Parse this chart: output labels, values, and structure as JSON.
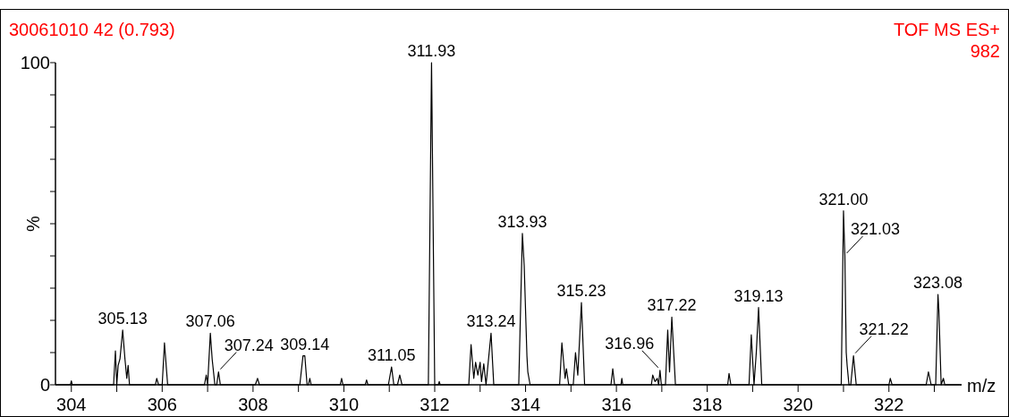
{
  "chart_data": {
    "type": "line",
    "title": "30061010 42 (0.793)",
    "xlabel": "m/z",
    "ylabel": "%",
    "annotations": [
      "TOF MS ES+",
      "982",
      {
        "text": "305.13",
        "x": 305.13,
        "y": 17
      },
      {
        "text": "307.06",
        "x": 307.06,
        "y": 16
      },
      {
        "text": "307.24",
        "x": 307.24,
        "y": 4
      },
      {
        "text": "309.14",
        "x": 309.14,
        "y": 9
      },
      {
        "text": "311.05",
        "x": 311.05,
        "y": 5.5
      },
      {
        "text": "311.93",
        "x": 311.93,
        "y": 100
      },
      {
        "text": "313.24",
        "x": 313.24,
        "y": 16
      },
      {
        "text": "313.93",
        "x": 313.93,
        "y": 47
      },
      {
        "text": "315.23",
        "x": 315.23,
        "y": 25.5
      },
      {
        "text": "316.96",
        "x": 316.96,
        "y": 4.5
      },
      {
        "text": "317.22",
        "x": 317.22,
        "y": 21
      },
      {
        "text": "319.13",
        "x": 319.13,
        "y": 24
      },
      {
        "text": "321.00",
        "x": 321.0,
        "y": 54
      },
      {
        "text": "321.03",
        "x": 321.03,
        "y": 40
      },
      {
        "text": "321.22",
        "x": 321.22,
        "y": 9
      },
      {
        "text": "323.08",
        "x": 323.08,
        "y": 28
      }
    ],
    "xlim": [
      303.65,
      323.6
    ],
    "xticks": [
      {
        "value": 304,
        "label": "304"
      },
      {
        "value": 305,
        "label": null
      },
      {
        "value": 306,
        "label": "306"
      },
      {
        "value": 307,
        "label": null
      },
      {
        "value": 308,
        "label": "308"
      },
      {
        "value": 309,
        "label": null
      },
      {
        "value": 310,
        "label": "310"
      },
      {
        "value": 311,
        "label": null
      },
      {
        "value": 312,
        "label": "312"
      },
      {
        "value": 313,
        "label": null
      },
      {
        "value": 314,
        "label": "314"
      },
      {
        "value": 315,
        "label": null
      },
      {
        "value": 316,
        "label": "316"
      },
      {
        "value": 317,
        "label": null
      },
      {
        "value": 318,
        "label": "318"
      },
      {
        "value": 319,
        "label": null
      },
      {
        "value": 320,
        "label": "320"
      },
      {
        "value": 321,
        "label": null
      },
      {
        "value": 322,
        "label": "322"
      },
      {
        "value": 323,
        "label": null
      }
    ],
    "ylim": [
      0,
      100
    ],
    "yticks": [
      0,
      {
        "value": 10,
        "label": null
      },
      {
        "value": 20,
        "label": null
      },
      {
        "value": 30,
        "label": null
      },
      {
        "value": 40,
        "label": null
      },
      {
        "value": 50,
        "label": null
      },
      {
        "value": 60,
        "label": null
      },
      {
        "value": 70,
        "label": null
      },
      {
        "value": 80,
        "label": null
      },
      {
        "value": 90,
        "label": null
      },
      100
    ],
    "grid": false,
    "marker": "none",
    "line_style": "solid",
    "series": [
      {
        "color": "#000000",
        "x": [
          303.65,
          303.98,
          304.0,
          304.02,
          304.93,
          304.97,
          305.0,
          305.03,
          305.07,
          305.13,
          305.18,
          305.22,
          305.25,
          305.28,
          305.85,
          305.88,
          305.92,
          306.0,
          306.05,
          306.12,
          306.93,
          306.97,
          307.0,
          307.06,
          307.1,
          307.16,
          307.2,
          307.24,
          307.28,
          308.05,
          308.1,
          308.14,
          309.03,
          309.1,
          309.14,
          309.19,
          309.22,
          309.25,
          309.28,
          309.92,
          309.95,
          309.98,
          310.47,
          310.5,
          310.53,
          310.98,
          311.05,
          311.1,
          311.18,
          311.23,
          311.28,
          311.86,
          311.93,
          312.0,
          312.08,
          312.1,
          312.12,
          312.75,
          312.8,
          312.86,
          312.9,
          312.95,
          313.0,
          313.03,
          313.08,
          313.13,
          313.24,
          313.3,
          313.85,
          313.93,
          313.97,
          314.03,
          314.05,
          314.1,
          314.75,
          314.8,
          314.87,
          314.9,
          314.95,
          315.05,
          315.1,
          315.15,
          315.23,
          315.3,
          315.88,
          315.92,
          315.96,
          316.1,
          316.12,
          316.14,
          316.77,
          316.8,
          316.85,
          316.9,
          316.93,
          316.96,
          316.99,
          317.08,
          317.13,
          317.17,
          317.22,
          317.3,
          318.45,
          318.48,
          318.52,
          318.92,
          318.97,
          319.03,
          319.08,
          319.13,
          319.2,
          320.95,
          321.0,
          321.03,
          321.06,
          321.08,
          321.12,
          321.16,
          321.22,
          321.28,
          322.0,
          322.03,
          322.07,
          322.82,
          322.87,
          322.93,
          323.03,
          323.08,
          323.1,
          323.15,
          323.2,
          323.23,
          323.6
        ],
        "values": [
          0,
          0,
          1.2,
          0,
          0,
          10.5,
          0,
          6,
          8,
          17,
          8,
          2,
          6,
          0,
          0,
          2,
          0,
          0,
          13,
          0,
          0,
          3,
          0,
          16,
          8,
          0,
          0,
          4,
          0,
          0,
          2,
          0,
          0,
          9,
          9,
          0,
          0,
          2,
          0,
          0,
          2,
          0,
          0,
          1.5,
          0,
          0,
          5.5,
          0,
          0,
          3,
          0,
          0,
          100,
          0,
          0,
          1,
          0,
          0,
          12.5,
          2,
          7,
          3,
          7,
          1,
          6.5,
          0,
          16,
          0,
          0,
          47,
          37,
          9,
          4,
          0,
          0,
          13,
          2,
          5,
          0,
          0,
          10,
          3,
          25.5,
          0,
          0,
          5,
          0,
          0,
          2,
          0,
          0,
          3,
          1,
          2,
          0,
          4.5,
          0,
          0,
          17,
          4,
          21,
          0,
          0,
          3.5,
          0,
          0,
          15.5,
          0,
          10,
          24,
          0,
          0,
          54,
          40,
          10,
          6,
          0,
          0,
          9,
          0,
          0,
          2,
          0,
          0,
          4,
          0,
          0,
          28,
          23,
          0,
          2,
          0,
          0
        ]
      }
    ]
  }
}
